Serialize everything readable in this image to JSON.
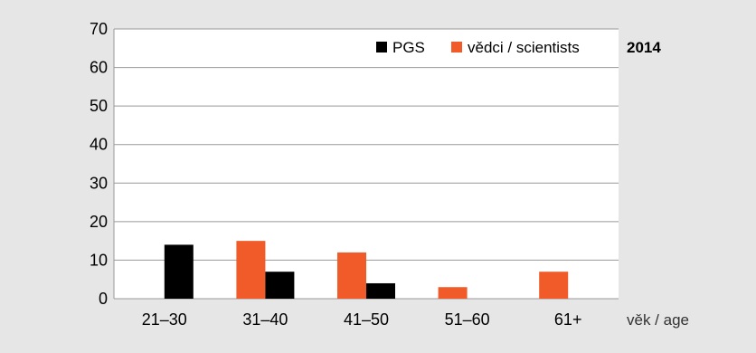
{
  "chart_data": {
    "type": "bar",
    "title": "2014",
    "xlabel": "věk / age",
    "ylabel": "",
    "ylim": [
      0,
      70
    ],
    "yticks": [
      0,
      10,
      20,
      30,
      40,
      50,
      60,
      70
    ],
    "categories": [
      "21–30",
      "31–40",
      "41–50",
      "51–60",
      "61+"
    ],
    "series": [
      {
        "name": "vědci / scientists",
        "color": "#f15a29",
        "values": [
          0,
          15,
          12,
          3,
          7
        ]
      },
      {
        "name": "PGS",
        "color": "#000000",
        "values": [
          14,
          7,
          4,
          0,
          0
        ]
      }
    ],
    "legend_order": [
      "PGS",
      "vědci / scientists"
    ],
    "legend_position": "top-right",
    "grid": true,
    "colors": {
      "background": "#e6e6e6",
      "plot_background": "#ffffff",
      "grid": "#999999"
    }
  }
}
